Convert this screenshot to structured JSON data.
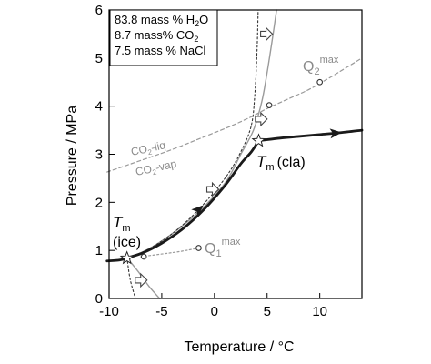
{
  "chart_data": {
    "type": "line",
    "xlabel": "Temperature  /  °C",
    "ylabel": "Pressure  /  MPa",
    "xlim": [
      -10,
      14
    ],
    "ylim": [
      0,
      6
    ],
    "x_ticks": [
      "-10",
      "-5",
      "0",
      "5",
      "10"
    ],
    "y_ticks": [
      "0",
      "1",
      "2",
      "3",
      "4",
      "5",
      "6"
    ],
    "composition": [
      "83.8 mass % H2O",
      "8.7 mass% CO2",
      "7.5 mass % NaCl"
    ],
    "composition_parts": [
      {
        "pre": "83.8 mass % H",
        "sub": "2",
        "post": "O"
      },
      {
        "pre": "8.7 mass% CO",
        "sub": "2",
        "post": ""
      },
      {
        "pre": "7.5 mass % NaCl",
        "sub": "",
        "post": ""
      }
    ],
    "labels": {
      "tm_ice_main": "T",
      "tm_ice_sub": "m",
      "tm_ice_paren": "(ice)",
      "tm_cla_main": "T",
      "tm_cla_sub": "m",
      "tm_cla_paren": "(cla)",
      "q1_main": "Q",
      "q1_sub": "1",
      "q1_sup": "max",
      "q2_main": "Q",
      "q2_sub": "2",
      "q2_sup": "max",
      "co2_liq_pre": "CO",
      "co2_liq_sub": "2",
      "co2_liq_post": "-liq",
      "co2_vap_pre": "CO",
      "co2_vap_sub": "2",
      "co2_vap_post": "-vap"
    },
    "colors": {
      "bold_path": "#1a1a1a",
      "gray_curve": "#9a9a9a",
      "dashed_line": "#9a9a9a",
      "dotted_line": "#333333",
      "markers": "#333333"
    },
    "series": [
      {
        "style": "bold",
        "x": [
          -10.2,
          -9,
          -8.2,
          -6.8,
          -5,
          -3,
          -1,
          1,
          2.5,
          3.5,
          4.2
        ],
        "y": [
          0.78,
          0.8,
          0.85,
          0.95,
          1.15,
          1.45,
          1.85,
          2.35,
          2.8,
          3.05,
          3.28
        ]
      },
      {
        "style": "bold",
        "x": [
          4.2,
          6,
          8,
          10,
          12,
          14
        ],
        "y": [
          3.28,
          3.33,
          3.37,
          3.41,
          3.45,
          3.5
        ]
      },
      {
        "style": "gray",
        "x": [
          -8.3,
          -6.5,
          -4,
          -1.5,
          1,
          2.5,
          3.7,
          4.5,
          5,
          5.5,
          5.9
        ],
        "y": [
          0.85,
          1.0,
          1.35,
          1.8,
          2.4,
          3.0,
          3.5,
          4.1,
          4.7,
          5.4,
          6.0
        ]
      },
      {
        "style": "gray",
        "x": [
          -8.3,
          -7.2,
          -6.2,
          -5.2
        ],
        "y": [
          0.85,
          0.55,
          0.25,
          -0.05
        ]
      },
      {
        "style": "dashed",
        "x": [
          -10.2,
          -7,
          -4,
          -1,
          1.5,
          3.5,
          5,
          7,
          9,
          11,
          14
        ],
        "y": [
          2.63,
          2.87,
          3.1,
          3.36,
          3.58,
          3.78,
          3.95,
          4.15,
          4.35,
          4.6,
          5.0
        ]
      },
      {
        "style": "dotted",
        "x": [
          -8.3,
          -6.5,
          -4,
          -1.5,
          1,
          2.5,
          3.5,
          3.85,
          4.05,
          4.15
        ],
        "y": [
          0.85,
          1.0,
          1.35,
          1.85,
          2.5,
          3.05,
          3.6,
          4.3,
          5.2,
          6.0
        ]
      },
      {
        "style": "dotted",
        "x": [
          -8.3,
          -8.0,
          -7.5
        ],
        "y": [
          0.85,
          0.4,
          0.0
        ]
      },
      {
        "style": "gray_dotted",
        "x": [
          -7.0,
          -3.5,
          -1.5
        ],
        "y": [
          0.87,
          0.97,
          1.05
        ]
      }
    ],
    "points": {
      "stars": [
        {
          "x": -8.3,
          "y": 0.84
        },
        {
          "x": 4.2,
          "y": 3.28
        }
      ],
      "circles": [
        {
          "x": -6.7,
          "y": 0.87
        },
        {
          "x": -1.5,
          "y": 1.05
        },
        {
          "x": 5.2,
          "y": 4.02
        },
        {
          "x": 10.0,
          "y": 4.5
        }
      ]
    },
    "arrows": [
      {
        "x": -1.5,
        "y": 1.85,
        "kind": "bold_path"
      },
      {
        "x": 11.5,
        "y": 3.44,
        "kind": "bold_path"
      },
      {
        "x": -7.0,
        "y": 0.38,
        "kind": "hollow"
      },
      {
        "x": -0.2,
        "y": 2.27,
        "kind": "hollow"
      },
      {
        "x": 4.4,
        "y": 3.73,
        "kind": "hollow"
      },
      {
        "x": 4.9,
        "y": 5.5,
        "kind": "hollow"
      }
    ]
  }
}
